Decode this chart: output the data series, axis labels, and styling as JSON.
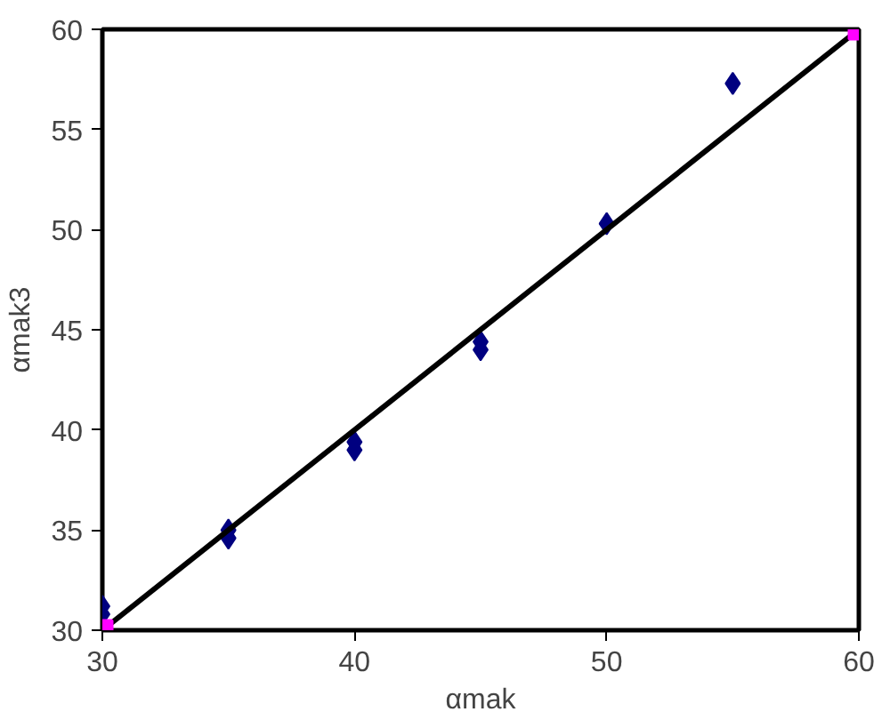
{
  "chart_data": {
    "type": "scatter",
    "xlabel": "αmak",
    "ylabel": "αmak3",
    "xlim": [
      30,
      60
    ],
    "ylim": [
      30,
      60
    ],
    "xticks": [
      30,
      40,
      50,
      60
    ],
    "yticks": [
      30,
      35,
      40,
      45,
      50,
      55,
      60
    ],
    "grid": false,
    "series": [
      {
        "marker": "diamond",
        "color": "#000080",
        "x": [
          30,
          30,
          35,
          35,
          40,
          40,
          45,
          45,
          50,
          55
        ],
        "values": [
          31.2,
          30.8,
          35.0,
          34.6,
          39.4,
          39.0,
          44.4,
          44.0,
          50.3,
          57.3
        ]
      },
      {
        "type": "line",
        "marker": "none",
        "color": "#000000",
        "x": [
          30,
          60
        ],
        "values": [
          30,
          60
        ]
      },
      {
        "marker": "cross",
        "color": "#ff00ff",
        "x": [
          30,
          60
        ],
        "values": [
          30,
          60
        ]
      }
    ]
  }
}
